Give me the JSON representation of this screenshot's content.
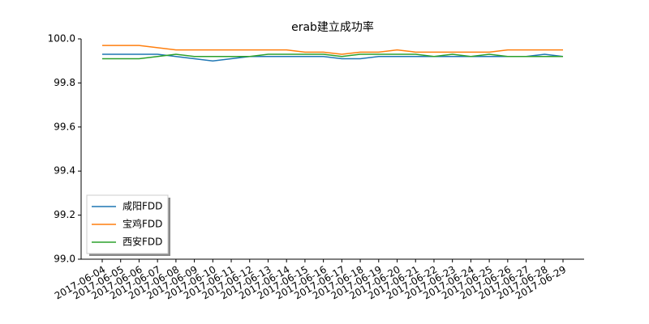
{
  "chart_data": {
    "type": "line",
    "title": "erab建立成功率",
    "x": [
      "2017-06-04",
      "2017-06-05",
      "2017-06-06",
      "2017-06-07",
      "2017-06-08",
      "2017-06-09",
      "2017-06-10",
      "2017-06-11",
      "2017-06-12",
      "2017-06-13",
      "2017-06-14",
      "2017-06-15",
      "2017-06-16",
      "2017-06-17",
      "2017-06-18",
      "2017-06-19",
      "2017-06-20",
      "2017-06-21",
      "2017-06-22",
      "2017-06-23",
      "2017-06-24",
      "2017-06-25",
      "2017-06-26",
      "2017-06-27",
      "2017-06-28",
      "2017-06-29"
    ],
    "series": [
      {
        "name": "咸阳FDD",
        "color": "#1f77b4",
        "values": [
          99.93,
          99.93,
          99.93,
          99.93,
          99.92,
          99.91,
          99.9,
          99.91,
          99.92,
          99.92,
          99.92,
          99.92,
          99.92,
          99.91,
          99.91,
          99.92,
          99.92,
          99.92,
          99.92,
          99.92,
          99.92,
          99.92,
          99.92,
          99.92,
          99.93,
          99.92
        ]
      },
      {
        "name": "宝鸡FDD",
        "color": "#ff7f0e",
        "values": [
          99.97,
          99.97,
          99.97,
          99.96,
          99.95,
          99.95,
          99.95,
          99.95,
          99.95,
          99.95,
          99.95,
          99.94,
          99.94,
          99.93,
          99.94,
          99.94,
          99.95,
          99.94,
          99.94,
          99.94,
          99.94,
          99.94,
          99.95,
          99.95,
          99.95,
          99.95
        ]
      },
      {
        "name": "西安FDD",
        "color": "#2ca02c",
        "values": [
          99.91,
          99.91,
          99.91,
          99.92,
          99.93,
          99.92,
          99.92,
          99.92,
          99.92,
          99.93,
          99.93,
          99.93,
          99.93,
          99.92,
          99.93,
          99.93,
          99.93,
          99.93,
          99.92,
          99.93,
          99.92,
          99.93,
          99.92,
          99.92,
          99.92,
          99.92
        ]
      }
    ],
    "ylim": [
      99.0,
      100.0
    ],
    "yticks": [
      {
        "value": 99.0,
        "label": "99.0"
      },
      99.2,
      99.4,
      99.6,
      99.8,
      {
        "value": 100.0,
        "label": "100.0"
      }
    ],
    "legend": "lower left",
    "grid": false
  }
}
